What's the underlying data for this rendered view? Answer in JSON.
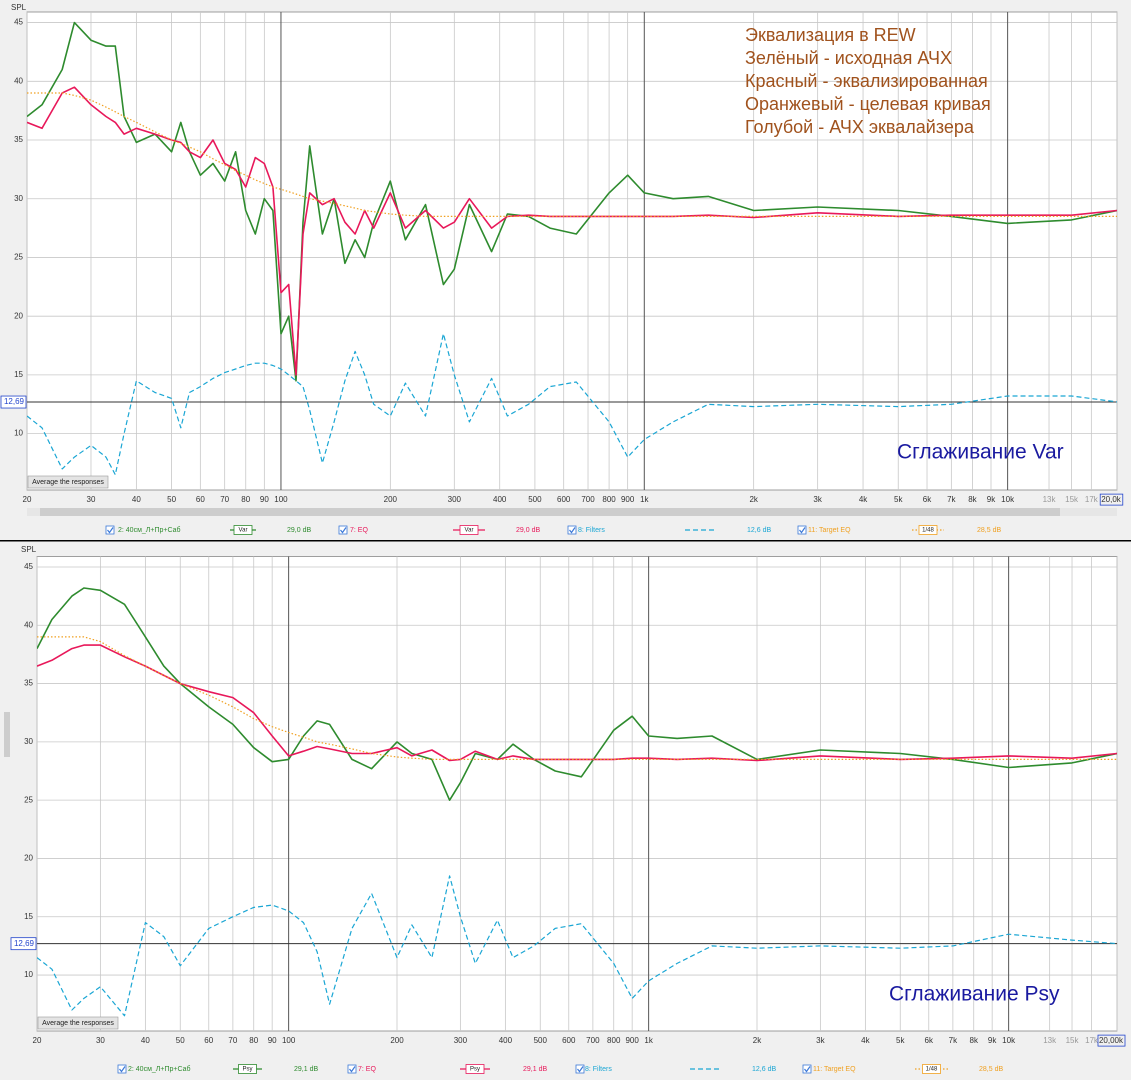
{
  "chart_data": [
    {
      "type": "line",
      "xlog": true,
      "grid": true,
      "ylabel": "SPL",
      "button": "Average the responses",
      "annotations": [
        "Эквализация в REW",
        "Зелёный - исходная АЧХ",
        "Красный - эквализированная",
        "Оранжевый - целевая кривая",
        "Голубой - АЧХ эквалайзера"
      ],
      "caption": "Сглаживание Var",
      "marker": {
        "value": 12.69,
        "label": "12,69"
      },
      "xlim": [
        20,
        20000
      ],
      "ylim": [
        5.2,
        45.9
      ],
      "yticks": [
        10,
        15,
        20,
        25,
        30,
        35,
        40,
        45
      ],
      "xticks": [
        20,
        30,
        40,
        50,
        60,
        70,
        80,
        90,
        100,
        200,
        300,
        400,
        500,
        600,
        700,
        800,
        900,
        {
          "value": 1000,
          "label": "1k"
        },
        {
          "value": 2000,
          "label": "2k"
        },
        {
          "value": 3000,
          "label": "3k"
        },
        {
          "value": 4000,
          "label": "4k"
        },
        {
          "value": 5000,
          "label": "5k"
        },
        {
          "value": 6000,
          "label": "6k"
        },
        {
          "value": 7000,
          "label": "7k"
        },
        {
          "value": 8000,
          "label": "8k"
        },
        {
          "value": 9000,
          "label": "9k"
        },
        {
          "value": 10000,
          "label": "10k"
        },
        {
          "value": 13000,
          "label": "13k"
        },
        {
          "value": 15000,
          "label": "15k"
        },
        {
          "value": 17000,
          "label": "17k"
        },
        {
          "value": 20000,
          "label": "20,0k"
        }
      ],
      "x": [
        20,
        22,
        25,
        27,
        30,
        33,
        35,
        37,
        40,
        45,
        50,
        53,
        56,
        60,
        65,
        70,
        75,
        80,
        85,
        90,
        95,
        100,
        105,
        110,
        115,
        120,
        130,
        140,
        150,
        160,
        170,
        180,
        200,
        220,
        250,
        280,
        300,
        330,
        380,
        420,
        480,
        550,
        650,
        800,
        900,
        1000,
        1200,
        1500,
        2000,
        3000,
        5000,
        7000,
        10000,
        15000,
        20000
      ],
      "series": [
        {
          "name": "2: 40см_Л+Пр+Саб",
          "smoothing": "Var",
          "level": "29,0 dB",
          "color": "#2e8b2e",
          "style": "solid",
          "values": [
            37,
            38,
            41,
            45,
            43.5,
            43,
            43,
            37,
            34.8,
            35.5,
            34,
            36.5,
            34,
            32,
            33,
            31.5,
            34,
            29,
            27,
            30,
            29,
            18.5,
            20,
            14.5,
            28,
            34.5,
            27,
            30,
            24.5,
            26.5,
            25,
            28,
            31.5,
            26.5,
            29.5,
            22.7,
            24,
            29.5,
            25.5,
            28.7,
            28.5,
            27.5,
            27,
            30.5,
            32,
            30.5,
            30,
            30.2,
            29,
            29.3,
            29,
            28.5,
            27.9,
            28.2,
            29
          ]
        },
        {
          "name": "7: EQ",
          "smoothing": "Var",
          "level": "29,0 dB",
          "color": "#e8185a",
          "style": "solid",
          "values": [
            36.5,
            36,
            39,
            39.5,
            38,
            37,
            36.5,
            35.5,
            36,
            35.5,
            35,
            34.8,
            34,
            33.5,
            35,
            33,
            32.5,
            31,
            33.5,
            33,
            31,
            22,
            22.7,
            15,
            27,
            30.5,
            29.5,
            30,
            28,
            27,
            29,
            27.5,
            30.5,
            27.5,
            29,
            27.5,
            28,
            30,
            27.5,
            28.5,
            28.6,
            28.5,
            28.5,
            28.5,
            28.5,
            28.5,
            28.5,
            28.6,
            28.4,
            28.8,
            28.5,
            28.6,
            28.6,
            28.6,
            29
          ]
        },
        {
          "name": "8: Filters",
          "level": "12,6 dB",
          "color": "#1aa6d4",
          "style": "dashed",
          "values": [
            11.5,
            10.5,
            7,
            8,
            9,
            8,
            6.5,
            10,
            14.5,
            13.5,
            13,
            10.5,
            13.5,
            14,
            14.7,
            15.2,
            15.5,
            15.8,
            16,
            16,
            15.8,
            15.5,
            15,
            14.5,
            14,
            12,
            7.5,
            11,
            14.5,
            17,
            15,
            12.5,
            11.5,
            14.3,
            11.5,
            18.5,
            15,
            11,
            14.7,
            11.5,
            12.5,
            14,
            14.4,
            11,
            8,
            9.5,
            11,
            12.5,
            12.3,
            12.5,
            12.3,
            12.5,
            13.2,
            13.2,
            12.7
          ]
        },
        {
          "name": "11: Target EQ",
          "smoothing": "1/48",
          "level": "28,5 dB",
          "color": "#f0a020",
          "style": "dotted",
          "values": [
            39,
            39,
            39,
            38.8,
            38.4,
            37.8,
            37.4,
            37,
            36.5,
            35.7,
            35,
            34.7,
            34.4,
            34,
            33.4,
            32.9,
            32.4,
            32,
            31.6,
            31.3,
            31,
            30.8,
            30.6,
            30.4,
            30.2,
            30,
            29.8,
            29.6,
            29.4,
            29.2,
            29,
            28.9,
            28.7,
            28.6,
            28.5,
            28.5,
            28.5,
            28.5,
            28.5,
            28.5,
            28.5,
            28.5,
            28.5,
            28.5,
            28.5,
            28.5,
            28.5,
            28.5,
            28.5,
            28.5,
            28.5,
            28.5,
            28.5,
            28.5,
            28.5
          ]
        }
      ]
    },
    {
      "type": "line",
      "xlog": true,
      "grid": true,
      "ylabel": "SPL",
      "button": "Average the responses",
      "caption": "Сглаживание Psy",
      "marker": {
        "value": 12.69,
        "label": "12,69"
      },
      "xlim": [
        20,
        20000
      ],
      "ylim": [
        5.2,
        45.9
      ],
      "yticks": [
        10,
        15,
        20,
        25,
        30,
        35,
        40,
        45
      ],
      "xticks": [
        20,
        30,
        40,
        50,
        60,
        70,
        80,
        90,
        100,
        200,
        300,
        400,
        500,
        600,
        700,
        800,
        900,
        {
          "value": 1000,
          "label": "1k"
        },
        {
          "value": 2000,
          "label": "2k"
        },
        {
          "value": 3000,
          "label": "3k"
        },
        {
          "value": 4000,
          "label": "4k"
        },
        {
          "value": 5000,
          "label": "5k"
        },
        {
          "value": 6000,
          "label": "6k"
        },
        {
          "value": 7000,
          "label": "7k"
        },
        {
          "value": 8000,
          "label": "8k"
        },
        {
          "value": 9000,
          "label": "9k"
        },
        {
          "value": 10000,
          "label": "10k"
        },
        {
          "value": 13000,
          "label": "13k"
        },
        {
          "value": 15000,
          "label": "15k"
        },
        {
          "value": 17000,
          "label": "17k"
        },
        {
          "value": 20000,
          "label": "20,00k"
        }
      ],
      "x": [
        20,
        22,
        25,
        27,
        30,
        35,
        40,
        45,
        50,
        60,
        70,
        80,
        90,
        100,
        110,
        120,
        130,
        150,
        170,
        200,
        220,
        250,
        280,
        300,
        330,
        380,
        420,
        480,
        550,
        650,
        800,
        900,
        1000,
        1200,
        1500,
        2000,
        3000,
        5000,
        7000,
        10000,
        15000,
        20000
      ],
      "series": [
        {
          "name": "2: 40см_Л+Пр+Саб",
          "smoothing": "Psy",
          "level": "29,1 dB",
          "color": "#2e8b2e",
          "style": "solid",
          "values": [
            38,
            40.5,
            42.5,
            43.2,
            43,
            41.8,
            39,
            36.5,
            35,
            33,
            31.5,
            29.5,
            28.3,
            28.5,
            30.5,
            31.8,
            31.5,
            28.5,
            27.7,
            30,
            29,
            28.5,
            25,
            26.5,
            29,
            28.5,
            29.8,
            28.5,
            27.5,
            27,
            31,
            32.2,
            30.5,
            30.3,
            30.5,
            28.5,
            29.3,
            29,
            28.5,
            27.8,
            28.2,
            29
          ]
        },
        {
          "name": "7: EQ",
          "smoothing": "Psy",
          "level": "29,1 dB",
          "color": "#e8185a",
          "style": "solid",
          "values": [
            36.5,
            37,
            38,
            38.3,
            38.3,
            37.3,
            36.5,
            35.7,
            35,
            34.3,
            33.8,
            32.5,
            30.5,
            28.8,
            29.2,
            29.6,
            29.4,
            29,
            29,
            29.5,
            28.8,
            29.3,
            28.4,
            28.5,
            29.2,
            28.5,
            28.8,
            28.5,
            28.5,
            28.5,
            28.5,
            28.6,
            28.6,
            28.5,
            28.6,
            28.4,
            28.8,
            28.5,
            28.6,
            28.8,
            28.6,
            29
          ]
        },
        {
          "name": "8: Filters",
          "level": "12,6 dB",
          "color": "#1aa6d4",
          "style": "dashed",
          "values": [
            11.5,
            10.5,
            7,
            8,
            9,
            6.5,
            14.5,
            13.3,
            10.8,
            14,
            15,
            15.8,
            16,
            15.5,
            14.5,
            12,
            7.5,
            14,
            17,
            11.5,
            14.3,
            11.5,
            18.5,
            15,
            11,
            14.7,
            11.5,
            12.5,
            14,
            14.4,
            11,
            8,
            9.5,
            11,
            12.5,
            12.3,
            12.5,
            12.3,
            12.5,
            13.5,
            13,
            12.7
          ]
        },
        {
          "name": "11: Target EQ",
          "smoothing": "1/48",
          "level": "28,5 dB",
          "color": "#f0a020",
          "style": "dotted",
          "values": [
            39,
            39,
            39,
            39,
            38.6,
            37.4,
            36.5,
            35.7,
            35,
            34,
            33,
            32,
            31.3,
            30.8,
            30.4,
            30,
            29.8,
            29.4,
            29,
            28.7,
            28.6,
            28.5,
            28.5,
            28.5,
            28.5,
            28.5,
            28.5,
            28.5,
            28.5,
            28.5,
            28.5,
            28.5,
            28.5,
            28.5,
            28.5,
            28.5,
            28.5,
            28.5,
            28.5,
            28.5,
            28.5,
            28.5
          ]
        }
      ]
    }
  ]
}
